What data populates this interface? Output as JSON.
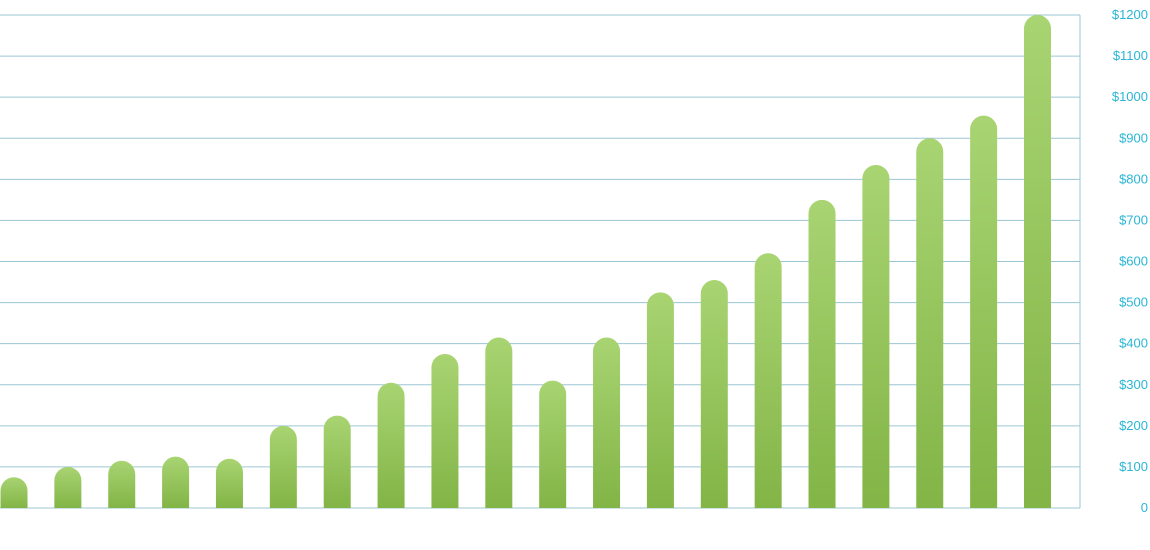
{
  "chart_data": {
    "type": "bar",
    "title": "",
    "xlabel": "",
    "ylabel": "",
    "ylim": [
      0,
      1200
    ],
    "y_ticks": [
      "0",
      "$100",
      "$200",
      "$300",
      "$400",
      "$500",
      "$600",
      "$700",
      "$800",
      "$900",
      "$1000",
      "$1100",
      "$1200"
    ],
    "y_tick_values": [
      0,
      100,
      200,
      300,
      400,
      500,
      600,
      700,
      800,
      900,
      1000,
      1100,
      1200
    ],
    "y_axis_position": "right",
    "grid": true,
    "values": [
      75,
      100,
      115,
      125,
      120,
      200,
      225,
      305,
      375,
      415,
      310,
      415,
      525,
      555,
      620,
      750,
      835,
      900,
      955,
      1200
    ],
    "colors": {
      "bar_top": "#a8d472",
      "bar_bottom": "#82b446",
      "grid": "#9cc6d4",
      "tick_text": "#29b6d6"
    }
  }
}
